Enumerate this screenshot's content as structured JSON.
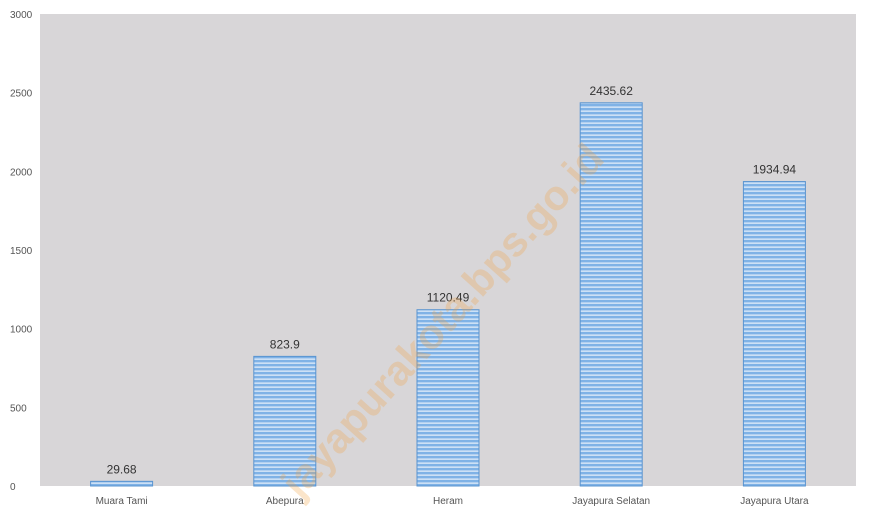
{
  "chart_data": {
    "type": "bar",
    "categories": [
      "Muara Tami",
      "Abepura",
      "Heram",
      "Jayapura Selatan",
      "Jayapura Utara"
    ],
    "values": [
      29.68,
      823.9,
      1120.49,
      2435.62,
      1934.94
    ],
    "value_labels": [
      "29.68",
      "823.9",
      "1120.49",
      "2435.62",
      "1934.94"
    ],
    "title": "",
    "xlabel": "",
    "ylabel": "",
    "ylim": [
      0,
      3000
    ],
    "yticks": [
      0,
      500,
      1000,
      1500,
      2000,
      2500,
      3000
    ],
    "grid": false,
    "legend": "none"
  },
  "colors": {
    "plot_background": "#d8d6d8",
    "bar_fill": "#7fb2e6",
    "bar_stripe": "#ffffff",
    "bar_border": "#5a94d0"
  },
  "watermark": "jayapurakota.bps.go.id"
}
